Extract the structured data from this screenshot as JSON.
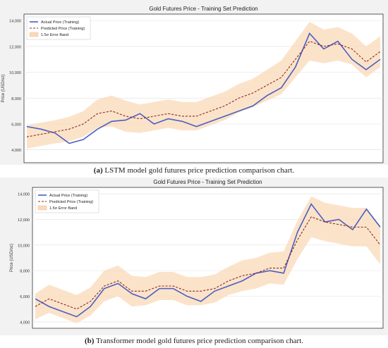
{
  "chart_data": [
    {
      "type": "line",
      "title": "Gold Futures Price - Training Set Prediction",
      "xlabel": "",
      "ylabel": "Price (USD/oz)",
      "ylim": [
        3000,
        14500
      ],
      "yticks": [
        4000,
        6000,
        8000,
        10000,
        12000,
        14000
      ],
      "ytick_labels": [
        "4,000",
        "6,000",
        "8,000",
        "10,000",
        "12,000",
        "14,000"
      ],
      "grid": true,
      "legend": "top-left",
      "legend_entries": [
        "Actual Price (Training)",
        "Predicted Price (Training)",
        "1.5σ Error Band"
      ],
      "caption_label": "(a)",
      "caption_text": " LSTM model gold futures price prediction comparison chart.",
      "colors": {
        "actual": "#4a5fc1",
        "predicted": "#8b2a1f",
        "band": "#f9d9b8"
      },
      "x": [
        0,
        4,
        8,
        12,
        16,
        20,
        24,
        28,
        32,
        36,
        40,
        44,
        48,
        52,
        56,
        60,
        64,
        68,
        72,
        76,
        80,
        84,
        88,
        92,
        96,
        100
      ],
      "series": [
        {
          "name": "Actual Price (Training)",
          "values": [
            5800,
            5600,
            5300,
            4500,
            4800,
            5600,
            6200,
            6300,
            6800,
            6000,
            6400,
            6200,
            5800,
            6200,
            6600,
            7000,
            7400,
            8200,
            8800,
            10400,
            13000,
            11800,
            12400,
            11000,
            10200,
            11000
          ]
        },
        {
          "name": "Predicted Price (Training)",
          "values": [
            5000,
            5200,
            5400,
            5600,
            6000,
            6800,
            7000,
            6600,
            6400,
            6600,
            6800,
            6600,
            6600,
            7000,
            7400,
            8000,
            8400,
            9000,
            9600,
            11000,
            12400,
            12000,
            12200,
            11800,
            10800,
            11600
          ]
        }
      ],
      "band_halfwidth": [
        900,
        900,
        900,
        950,
        1000,
        1100,
        1200,
        1200,
        1100,
        1100,
        1100,
        1100,
        1100,
        1100,
        1100,
        1100,
        1100,
        1200,
        1300,
        1400,
        1500,
        1300,
        1300,
        1200,
        1200,
        1200
      ]
    },
    {
      "type": "line",
      "title": "Gold Futures Price - Training Set Prediction",
      "xlabel": "",
      "ylabel": "Price (USD/oz)",
      "ylim": [
        3500,
        14500
      ],
      "yticks": [
        4000,
        6000,
        8000,
        10000,
        12000,
        14000
      ],
      "ytick_labels": [
        "4,000",
        "6,000",
        "8,000",
        "10,000",
        "12,000",
        "14,000"
      ],
      "grid": true,
      "legend": "top-left",
      "legend_entries": [
        "Actual Price (Training)",
        "Predicted Price (Training)",
        "1.5σ Error Band"
      ],
      "caption_label": "(b)",
      "caption_text": " Transformer model gold futures price prediction comparison chart.",
      "colors": {
        "actual": "#4a5fc1",
        "predicted": "#8b2a1f",
        "band": "#f9d9b8"
      },
      "x": [
        0,
        4,
        8,
        12,
        16,
        20,
        24,
        28,
        32,
        36,
        40,
        44,
        48,
        52,
        56,
        60,
        64,
        68,
        72,
        76,
        80,
        84,
        88,
        92,
        96,
        100
      ],
      "series": [
        {
          "name": "Actual Price (Training)",
          "values": [
            5800,
            5200,
            4800,
            4400,
            5200,
            6600,
            7000,
            6200,
            5800,
            6600,
            6600,
            6000,
            5600,
            6400,
            6800,
            7200,
            7800,
            8000,
            7800,
            11000,
            13200,
            11800,
            12000,
            11200,
            12800,
            11400
          ]
        },
        {
          "name": "Predicted Price (Training)",
          "values": [
            5200,
            5800,
            5400,
            5000,
            5600,
            6800,
            7200,
            6400,
            6400,
            6800,
            6800,
            6400,
            6400,
            6600,
            7200,
            7600,
            7800,
            8200,
            8200,
            10400,
            12200,
            11800,
            11600,
            11400,
            11400,
            10000
          ]
        }
      ],
      "band_halfwidth": [
        1000,
        1100,
        1100,
        1100,
        1100,
        1200,
        1200,
        1200,
        1100,
        1100,
        1100,
        1100,
        1100,
        1100,
        1100,
        1200,
        1200,
        1200,
        1300,
        1500,
        1600,
        1500,
        1500,
        1500,
        1500,
        1500
      ]
    }
  ]
}
